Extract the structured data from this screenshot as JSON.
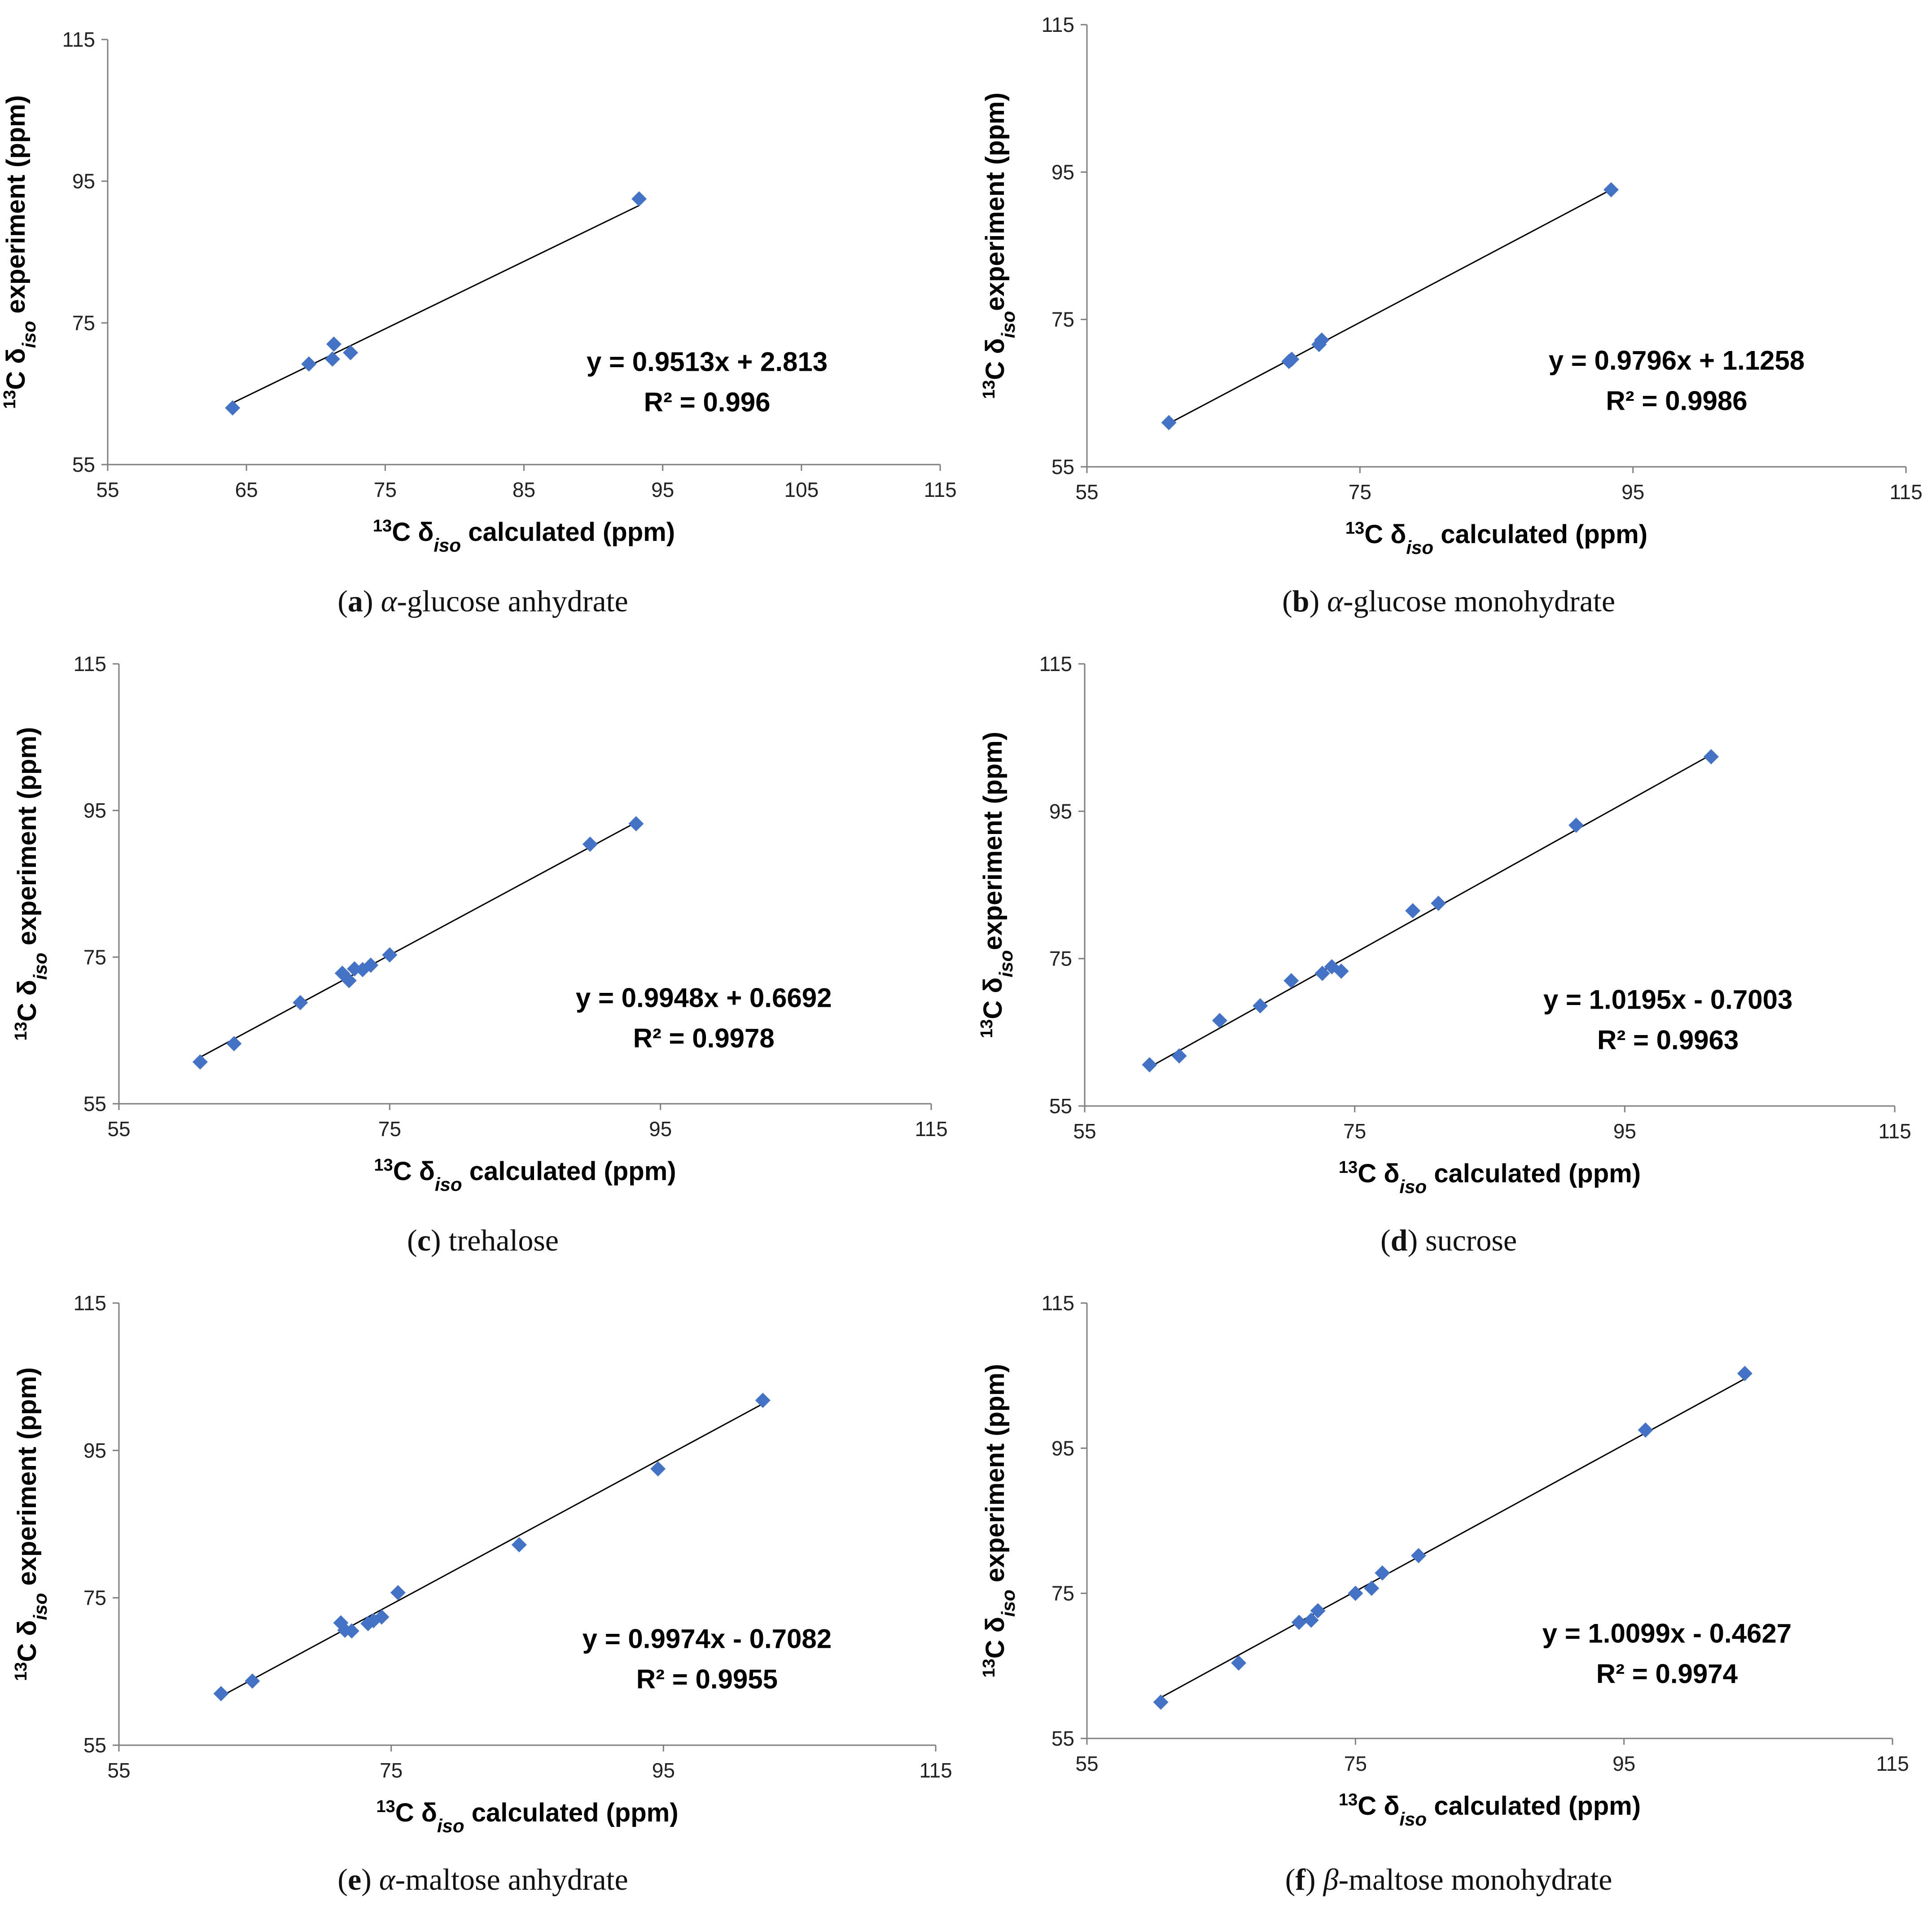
{
  "style": {
    "marker_color": "#4472c4",
    "line_color": "#000000",
    "axis_color": "#7f7f7f"
  },
  "chart_data": [
    {
      "id": "a",
      "type": "scatter",
      "caption": {
        "label": "a",
        "greek": "α",
        "text": "-glucose anhydrate"
      },
      "xlabel": {
        "pre": "13",
        "main": "C  δ",
        "sub": "iso",
        "post": " calculated (ppm)"
      },
      "ylabel": {
        "pre": "13",
        "main": "C δ",
        "sub": "iso",
        "post": " experiment (ppm)"
      },
      "xlim": [
        55,
        115
      ],
      "ylim": [
        55,
        115
      ],
      "xticks": [
        55,
        65,
        75,
        85,
        95,
        105,
        115
      ],
      "yticks": [
        55,
        75,
        95,
        115
      ],
      "points": [
        [
          64.0,
          63.0
        ],
        [
          69.5,
          69.2
        ],
        [
          71.3,
          72.0
        ],
        [
          71.2,
          69.9
        ],
        [
          72.5,
          70.8
        ],
        [
          93.3,
          92.5
        ]
      ],
      "trendline": {
        "slope": 0.9513,
        "intercept": 2.813,
        "x_range": [
          64.0,
          93.3
        ]
      },
      "equation": "y = 0.9513x + 2.813",
      "r2": "R² = 0.996"
    },
    {
      "id": "b",
      "type": "scatter",
      "caption": {
        "label": "b",
        "greek": "α",
        "text": "-glucose monohydrate"
      },
      "xlabel": {
        "pre": "13",
        "main": "C  δ",
        "sub": "iso",
        "post": " calculated (ppm)"
      },
      "ylabel": {
        "pre": "13",
        "main": "C δ",
        "sub": "iso",
        "post": "experiment (ppm)"
      },
      "xlim": [
        55,
        115
      ],
      "ylim": [
        55,
        115
      ],
      "xticks": [
        55,
        75,
        95,
        115
      ],
      "yticks": [
        55,
        75,
        95,
        115
      ],
      "points": [
        [
          61.0,
          61.0
        ],
        [
          69.8,
          69.3
        ],
        [
          70.0,
          69.6
        ],
        [
          72.0,
          71.6
        ],
        [
          72.2,
          72.2
        ],
        [
          93.4,
          92.6
        ]
      ],
      "trendline": {
        "slope": 0.9796,
        "intercept": 1.1258,
        "x_range": [
          61.0,
          93.4
        ]
      },
      "equation": "y = 0.9796x + 1.1258",
      "r2": "R² = 0.9986"
    },
    {
      "id": "c",
      "type": "scatter",
      "caption": {
        "label": "c",
        "greek": "",
        "text": "trehalose"
      },
      "xlabel": {
        "pre": "13",
        "main": "C  δ",
        "sub": "iso",
        "post": " calculated (ppm)"
      },
      "ylabel": {
        "pre": "13",
        "main": "C δ",
        "sub": "iso",
        "post": "  experiment (ppm)"
      },
      "xlim": [
        55,
        115
      ],
      "ylim": [
        55,
        115
      ],
      "xticks": [
        55,
        75,
        95,
        115
      ],
      "yticks": [
        55,
        75,
        95,
        115
      ],
      "points": [
        [
          61.0,
          60.7
        ],
        [
          63.5,
          63.2
        ],
        [
          68.4,
          68.8
        ],
        [
          71.5,
          72.8
        ],
        [
          72.0,
          71.8
        ],
        [
          72.4,
          73.4
        ],
        [
          73.0,
          73.3
        ],
        [
          73.6,
          73.9
        ],
        [
          75.0,
          75.3
        ],
        [
          89.8,
          90.4
        ],
        [
          93.2,
          93.2
        ]
      ],
      "trendline": {
        "slope": 0.9948,
        "intercept": 0.6692,
        "x_range": [
          61.0,
          93.2
        ]
      },
      "equation": "y = 0.9948x + 0.6692",
      "r2": "R² = 0.9978"
    },
    {
      "id": "d",
      "type": "scatter",
      "caption": {
        "label": "d",
        "greek": "",
        "text": "sucrose"
      },
      "xlabel": {
        "pre": "13",
        "main": "C  δ",
        "sub": "iso",
        "post": " calculated (ppm)"
      },
      "ylabel": {
        "pre": "13",
        "main": "C δ",
        "sub": "iso",
        "post": "experiment (ppm)"
      },
      "xlim": [
        55,
        115
      ],
      "ylim": [
        55,
        115
      ],
      "xticks": [
        55,
        75,
        95,
        115
      ],
      "yticks": [
        55,
        75,
        95,
        115
      ],
      "points": [
        [
          59.8,
          60.6
        ],
        [
          62.0,
          61.8
        ],
        [
          65.0,
          66.6
        ],
        [
          68.0,
          68.6
        ],
        [
          70.3,
          72.0
        ],
        [
          72.6,
          73.0
        ],
        [
          73.3,
          73.9
        ],
        [
          74.0,
          73.3
        ],
        [
          79.3,
          81.5
        ],
        [
          81.2,
          82.5
        ],
        [
          91.4,
          93.1
        ],
        [
          101.4,
          102.4
        ]
      ],
      "trendline": {
        "slope": 1.0195,
        "intercept": -0.7003,
        "x_range": [
          59.8,
          101.4
        ]
      },
      "equation": "y = 1.0195x - 0.7003",
      "r2": "R² = 0.9963"
    },
    {
      "id": "e",
      "type": "scatter",
      "caption": {
        "label": "e",
        "greek": "α",
        "text": "-maltose anhydrate"
      },
      "xlabel": {
        "pre": "13",
        "main": "C  δ",
        "sub": "iso",
        "post": " calculated (ppm)"
      },
      "ylabel": {
        "pre": "13",
        "main": "C δ",
        "sub": "iso",
        "post": "  experiment (ppm)"
      },
      "xlim": [
        55,
        115
      ],
      "ylim": [
        55,
        115
      ],
      "xticks": [
        55,
        75,
        95,
        115
      ],
      "yticks": [
        55,
        75,
        95,
        115
      ],
      "points": [
        [
          62.5,
          62.0
        ],
        [
          64.8,
          63.7
        ],
        [
          71.3,
          71.6
        ],
        [
          71.6,
          70.6
        ],
        [
          72.1,
          70.5
        ],
        [
          73.3,
          71.5
        ],
        [
          73.7,
          71.9
        ],
        [
          74.3,
          72.4
        ],
        [
          75.5,
          75.7
        ],
        [
          84.4,
          82.2
        ],
        [
          94.6,
          92.5
        ],
        [
          102.3,
          101.8
        ]
      ],
      "trendline": {
        "slope": 0.9974,
        "intercept": -0.7082,
        "x_range": [
          62.5,
          102.3
        ]
      },
      "equation": "y = 0.9974x - 0.7082",
      "r2": "R² = 0.9955"
    },
    {
      "id": "f",
      "type": "scatter",
      "caption": {
        "label": "f",
        "greek": "β",
        "text": "-maltose monohydrate"
      },
      "xlabel": {
        "pre": "13",
        "main": "C  δ",
        "sub": "iso",
        "post": "  calculated (ppm)"
      },
      "ylabel": {
        "pre": "13",
        "main": "C δ",
        "sub": "iso",
        "post": " experiment (ppm)"
      },
      "xlim": [
        55,
        115
      ],
      "ylim": [
        55,
        115
      ],
      "xticks": [
        55,
        75,
        95,
        115
      ],
      "yticks": [
        55,
        75,
        95,
        115
      ],
      "points": [
        [
          60.5,
          60.0
        ],
        [
          66.3,
          65.4
        ],
        [
          70.8,
          71.0
        ],
        [
          71.7,
          71.3
        ],
        [
          72.2,
          72.6
        ],
        [
          75.0,
          75.0
        ],
        [
          76.2,
          75.7
        ],
        [
          77.0,
          77.8
        ],
        [
          79.7,
          80.2
        ],
        [
          96.6,
          97.5
        ],
        [
          104.0,
          105.3
        ]
      ],
      "trendline": {
        "slope": 1.0099,
        "intercept": -0.4627,
        "x_range": [
          60.5,
          104.0
        ]
      },
      "equation": "y = 1.0099x - 0.4627",
      "r2": "R² = 0.9974"
    }
  ]
}
